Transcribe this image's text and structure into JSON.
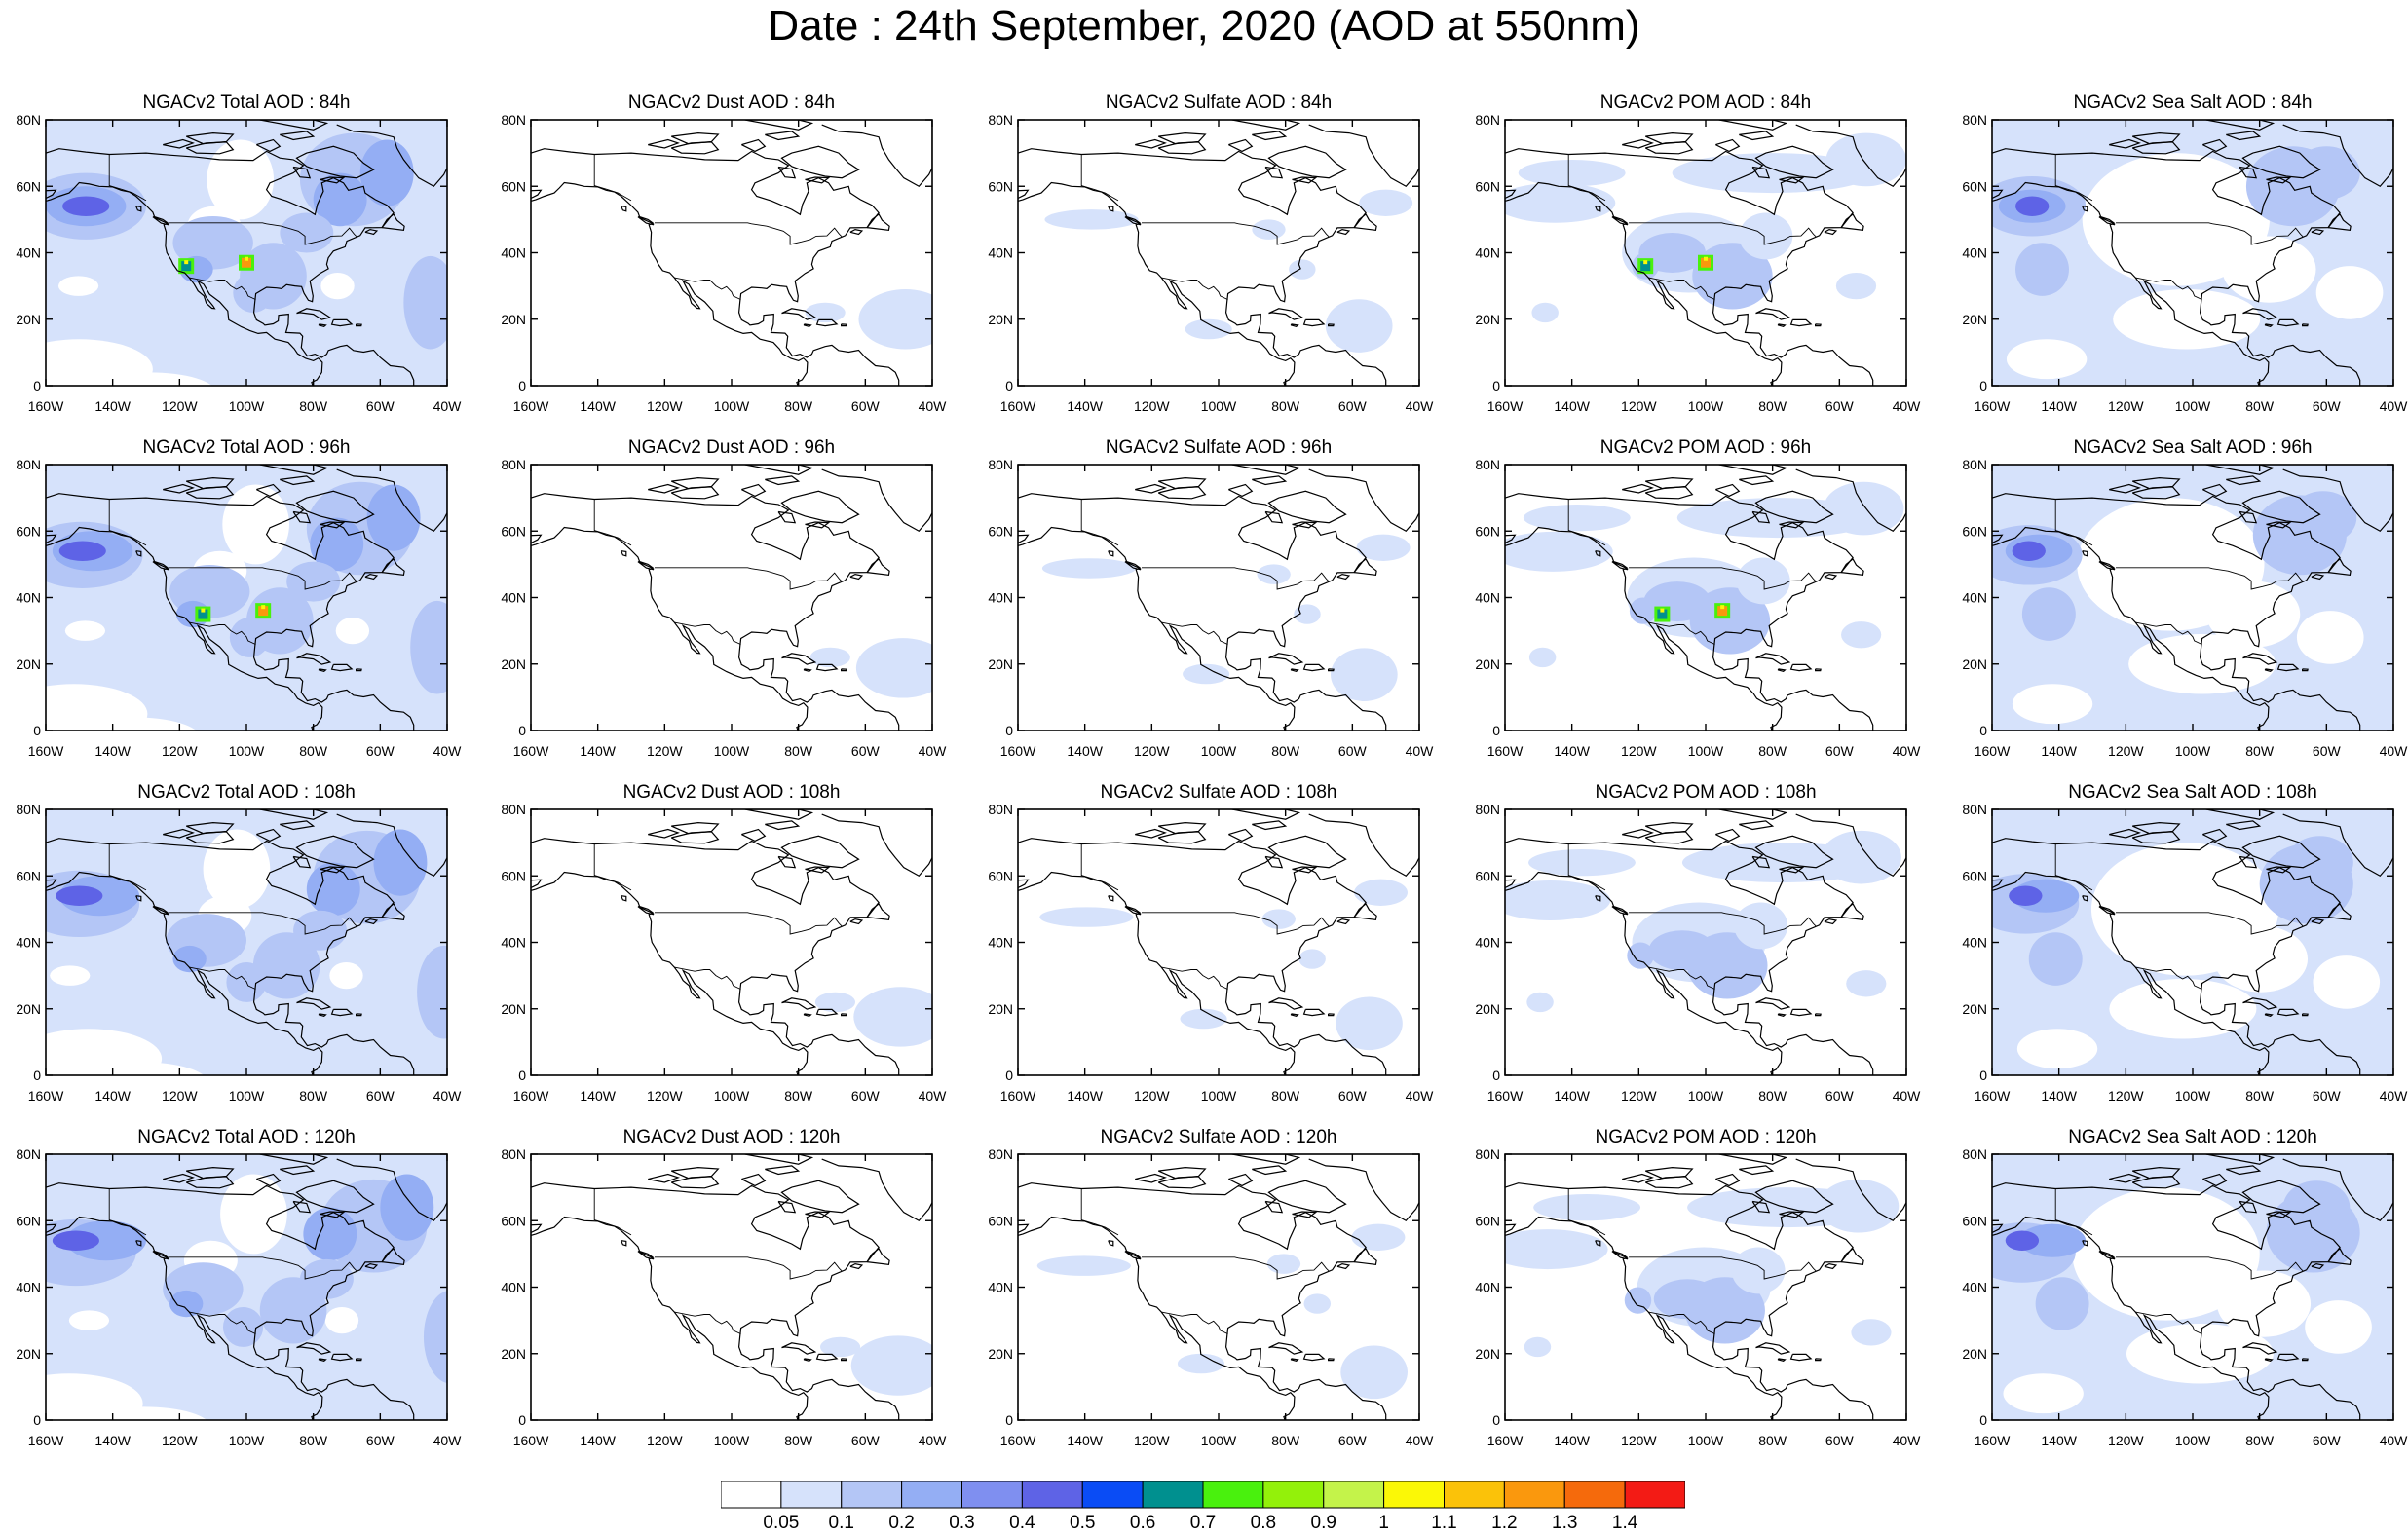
{
  "title": "Date : 24th September, 2020 (AOD at 550nm)",
  "rows": [
    "84h",
    "96h",
    "108h",
    "120h"
  ],
  "columns": [
    "Total",
    "Dust",
    "Sulfate",
    "POM",
    "Sea Salt"
  ],
  "panels": [
    [
      "NGACv2 Total AOD : 84h",
      "NGACv2 Dust AOD : 84h",
      "NGACv2 Sulfate AOD : 84h",
      "NGACv2 POM AOD : 84h",
      "NGACv2 Sea Salt AOD : 84h"
    ],
    [
      "NGACv2 Total AOD : 96h",
      "NGACv2 Dust AOD : 96h",
      "NGACv2 Sulfate AOD : 96h",
      "NGACv2 POM AOD : 96h",
      "NGACv2 Sea Salt AOD : 96h"
    ],
    [
      "NGACv2 Total AOD : 108h",
      "NGACv2 Dust AOD : 108h",
      "NGACv2 Sulfate AOD : 108h",
      "NGACv2 POM AOD : 108h",
      "NGACv2 Sea Salt AOD : 108h"
    ],
    [
      "NGACv2 Total AOD : 120h",
      "NGACv2 Dust AOD : 120h",
      "NGACv2 Sulfate AOD : 120h",
      "NGACv2 POM AOD : 120h",
      "NGACv2 Sea Salt  AOD : 120h"
    ]
  ],
  "axes": {
    "lat_ticks": [
      "80N",
      "60N",
      "40N",
      "20N",
      "0"
    ],
    "lon_ticks": [
      "160W",
      "140W",
      "120W",
      "100W",
      "80W",
      "60W",
      "40W"
    ],
    "lat_range": [
      0,
      80
    ],
    "lon_range": [
      -160,
      -40
    ]
  },
  "colorbar": {
    "labels": [
      "0.05",
      "0.1",
      "0.2",
      "0.3",
      "0.4",
      "0.5",
      "0.6",
      "0.7",
      "0.8",
      "0.9",
      "1",
      "1.1",
      "1.2",
      "1.3",
      "1.4"
    ],
    "colors": [
      "#ffffff",
      "#d6e2fb",
      "#b4c6f6",
      "#94aef4",
      "#7f8ff0",
      "#5e63e6",
      "#0a4cf5",
      "#00908f",
      "#49f10d",
      "#93f10a",
      "#c4f34a",
      "#fbf806",
      "#fbc209",
      "#fa980d",
      "#f56a0c",
      "#f31b15"
    ]
  }
}
